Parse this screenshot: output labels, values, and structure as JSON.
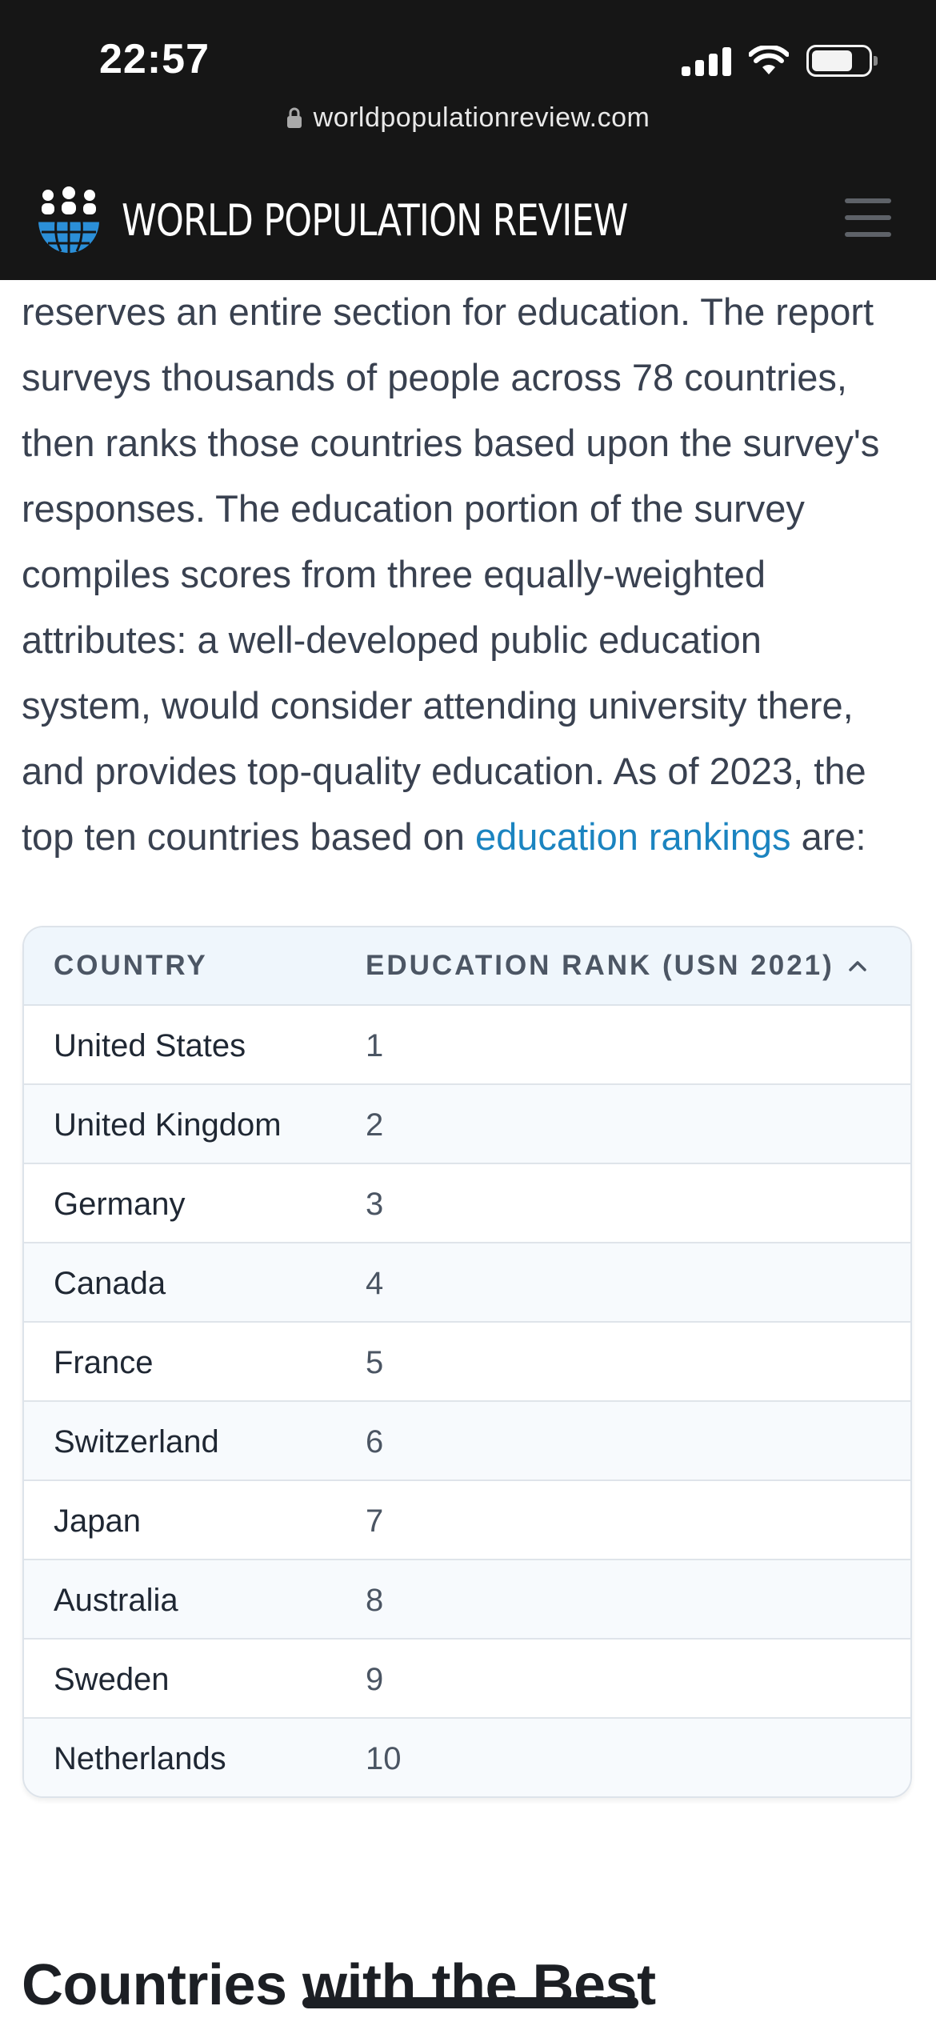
{
  "status_bar": {
    "time": "22:57"
  },
  "browser": {
    "url": "worldpopulationreview.com"
  },
  "header": {
    "site_title": "WORLD POPULATION REVIEW",
    "logo_icon": "globe-people-icon",
    "menu_icon": "hamburger-menu-icon"
  },
  "article": {
    "lines": [
      "reserves an entire section for education. The report",
      "surveys thousands of people across 78 countries,",
      "then ranks those countries based upon the survey's",
      "responses. The education portion of the survey",
      "compiles scores from three equally-weighted",
      "attributes: a well-developed public education",
      "system, would consider attending university there,",
      "and provides top-quality education. As of 2023, the"
    ],
    "last_line_prefix": "top ten countries based on ",
    "link_text": "education rankings",
    "last_line_suffix": " are:"
  },
  "table": {
    "columns": [
      "COUNTRY",
      "EDUCATION RANK (USN 2021)"
    ],
    "sort_icon": "chevron-up-icon",
    "rows": [
      {
        "country": "United States",
        "rank": "1"
      },
      {
        "country": "United Kingdom",
        "rank": "2"
      },
      {
        "country": "Germany",
        "rank": "3"
      },
      {
        "country": "Canada",
        "rank": "4"
      },
      {
        "country": "France",
        "rank": "5"
      },
      {
        "country": "Switzerland",
        "rank": "6"
      },
      {
        "country": "Japan",
        "rank": "7"
      },
      {
        "country": "Australia",
        "rank": "8"
      },
      {
        "country": "Sweden",
        "rank": "9"
      },
      {
        "country": "Netherlands",
        "rank": "10"
      }
    ]
  },
  "next_section": {
    "heading": "Countries with the Best"
  },
  "colors": {
    "chrome_bg": "#161616",
    "link": "#1b84c0",
    "table_header_bg": "#eff6fc",
    "body_text": "#394150"
  }
}
